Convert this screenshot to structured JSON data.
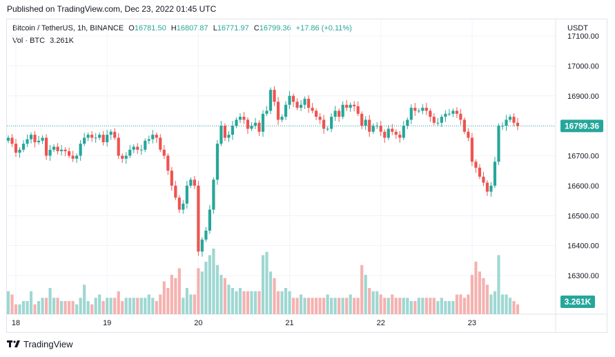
{
  "published": "Published on TradingView.com, Dec 23, 2022 01:45 UTC",
  "legend": {
    "symbol": "Bitcoin / TetherUS, 1h, BINANCE",
    "o_label": "O",
    "o_value": "16781.50",
    "h_label": "H",
    "h_value": "16807.87",
    "l_label": "L",
    "l_value": "16771.97",
    "c_label": "C",
    "c_value": "16799.36",
    "change": "+17.86 (+0.11%)",
    "vol_label": "Vol · BTC",
    "vol_value": "3.261K"
  },
  "currency": "USDT",
  "footer": {
    "brand": "TradingView",
    "logo_icon": "tradingview-logo-icon"
  },
  "colors": {
    "up": "#26a69a",
    "down": "#ef5350",
    "up_vol": "#9fd7d2",
    "down_vol": "#f4b2b0",
    "text": "#131722",
    "grid": "#f0f3fa"
  },
  "chart_data": {
    "type": "candlestick",
    "symbol": "Bitcoin / TetherUS",
    "interval": "1h",
    "exchange": "BINANCE",
    "x_tick_labels": [
      "18",
      "19",
      "20",
      "21",
      "22",
      "23"
    ],
    "y_tick_labels": [
      "16300.00",
      "16400.00",
      "16500.00",
      "16600.00",
      "16700.00",
      "16800.00",
      "16900.00",
      "17000.00",
      "17100.00"
    ],
    "ylim": [
      16200,
      17100
    ],
    "last_price_label": "16799.36",
    "last_volume_label": "3.261K",
    "close": [
      16760,
      16740,
      16710,
      16720,
      16740,
      16755,
      16770,
      16745,
      16750,
      16760,
      16700,
      16720,
      16730,
      16715,
      16720,
      16715,
      16700,
      16690,
      16700,
      16740,
      16760,
      16770,
      16760,
      16760,
      16770,
      16745,
      16770,
      16780,
      16760,
      16700,
      16690,
      16700,
      16720,
      16730,
      16720,
      16720,
      16750,
      16755,
      16770,
      16760,
      16720,
      16700,
      16650,
      16600,
      16560,
      16520,
      16540,
      16600,
      16620,
      16600,
      16380,
      16420,
      16450,
      16520,
      16620,
      16740,
      16800,
      16760,
      16770,
      16800,
      16820,
      16830,
      16820,
      16790,
      16800,
      16810,
      16780,
      16840,
      16850,
      16920,
      16880,
      16820,
      16830,
      16870,
      16900,
      16880,
      16860,
      16870,
      16890,
      16860,
      16850,
      16830,
      16820,
      16790,
      16790,
      16830,
      16850,
      16830,
      16870,
      16860,
      16870,
      16865,
      16840,
      16800,
      16820,
      16780,
      16800,
      16800,
      16780,
      16760,
      16790,
      16780,
      16770,
      16760,
      16800,
      16820,
      16860,
      16850,
      16850,
      16860,
      16850,
      16830,
      16810,
      16810,
      16830,
      16840,
      16840,
      16850,
      16840,
      16820,
      16780,
      16760,
      16680,
      16660,
      16630,
      16610,
      16580,
      16600,
      16680,
      16800,
      16800,
      16820,
      16830,
      16810,
      16799
    ],
    "volume_k": [
      7,
      6,
      3,
      3,
      4,
      4,
      7,
      3,
      4,
      5,
      5,
      8,
      5,
      5,
      4,
      4,
      4,
      4,
      3,
      5,
      9,
      4,
      3,
      5,
      6,
      4,
      5,
      5,
      5,
      7,
      4,
      5,
      5,
      5,
      5,
      5,
      5,
      6,
      5,
      4,
      6,
      10,
      8,
      12,
      11,
      14,
      5,
      8,
      6,
      6,
      14,
      13,
      16,
      18,
      20,
      15,
      12,
      11,
      9,
      8,
      7,
      8,
      7,
      7,
      7,
      7,
      7,
      18,
      19,
      13,
      11,
      7,
      7,
      8,
      7,
      5,
      5,
      6,
      5,
      5,
      5,
      5,
      5,
      5,
      6,
      5,
      5,
      5,
      5,
      5,
      6,
      5,
      5,
      15,
      12,
      8,
      7,
      7,
      6,
      5,
      5,
      6,
      5,
      5,
      5,
      5,
      4,
      4,
      5,
      5,
      5,
      5,
      5,
      4,
      5,
      4,
      4,
      4,
      6,
      6,
      5,
      6,
      12,
      16,
      13,
      11,
      9,
      6,
      7,
      18,
      6,
      6,
      5,
      4,
      3
    ]
  }
}
